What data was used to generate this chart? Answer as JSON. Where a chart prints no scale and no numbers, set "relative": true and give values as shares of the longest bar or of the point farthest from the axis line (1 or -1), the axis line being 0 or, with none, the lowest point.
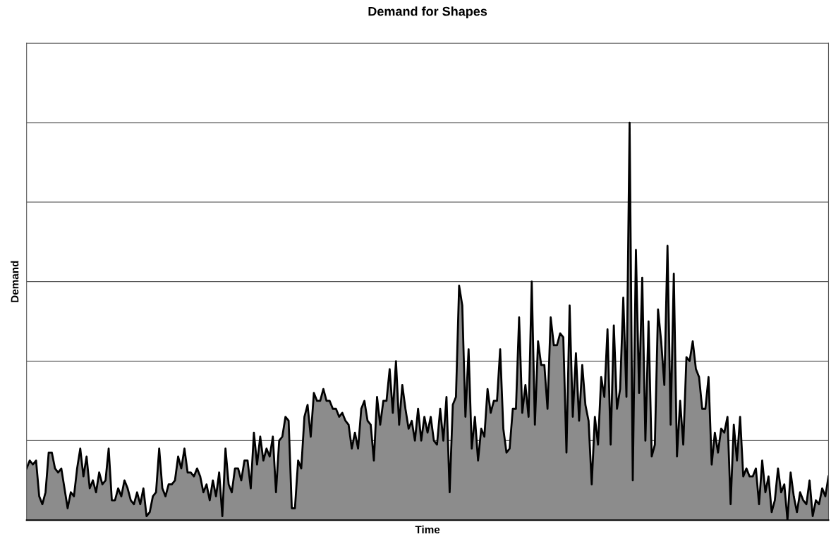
{
  "chart_data": {
    "type": "area",
    "title": "Demand for Shapes",
    "xlabel": "Time",
    "ylabel": "Demand",
    "relative": true,
    "grid": "y",
    "categories": [
      null,
      null,
      null,
      null,
      null,
      null,
      null,
      null,
      null,
      null,
      null,
      null,
      null,
      null,
      null,
      null,
      null,
      null,
      null,
      null,
      null,
      null,
      null,
      null,
      null,
      null,
      null,
      null,
      null,
      null,
      null,
      null,
      null,
      null,
      null,
      null,
      null,
      null,
      null,
      null,
      null,
      null,
      null,
      null,
      null,
      null,
      null,
      null,
      null,
      null,
      null,
      null,
      null,
      null,
      null,
      null,
      null,
      null,
      null,
      null,
      null,
      null,
      null,
      null,
      null,
      null,
      null,
      null,
      null,
      null,
      null,
      null,
      null,
      null,
      null,
      null,
      null,
      null,
      null,
      null,
      null,
      null,
      null,
      null,
      null,
      null,
      null,
      null,
      null,
      null,
      null,
      null,
      null,
      null,
      null,
      null,
      null,
      null,
      null,
      null,
      null,
      null,
      null,
      null,
      null,
      null,
      null,
      null,
      null,
      null,
      null,
      null,
      null,
      null,
      null,
      null,
      null,
      null,
      null,
      null,
      null,
      null,
      null,
      null,
      null,
      null,
      null,
      null,
      null,
      null,
      null,
      null,
      null,
      null,
      null,
      null,
      null,
      null,
      null,
      null,
      null,
      null,
      null,
      null,
      null,
      null,
      null,
      null,
      null,
      null,
      null,
      null,
      null,
      null,
      null,
      null,
      null,
      null,
      null,
      null,
      null,
      null,
      null,
      null,
      null,
      null,
      null,
      null,
      null,
      null,
      null,
      null,
      null,
      null,
      null,
      null,
      null,
      null,
      null,
      null,
      null,
      null,
      null,
      null,
      null,
      null,
      null,
      null,
      null,
      null,
      null,
      null,
      null,
      null,
      null,
      null,
      null,
      null,
      null,
      null,
      null,
      null,
      null,
      null,
      null,
      null,
      null,
      null,
      null,
      null,
      null,
      null,
      null,
      null,
      null,
      null,
      null,
      null,
      null,
      null,
      null,
      null,
      null,
      null,
      null,
      null,
      null,
      null,
      null,
      null,
      null,
      null,
      null,
      null,
      null,
      null,
      null,
      null,
      null,
      null,
      null,
      null,
      null,
      null,
      null,
      null,
      null,
      null,
      null,
      null,
      null,
      null,
      null,
      null,
      null
    ],
    "series": [
      {
        "color": "#8c8c8c",
        "values": [
          0.13,
          0.15,
          0.14,
          0.15,
          0.06,
          0.04,
          0.07,
          0.17,
          0.17,
          0.13,
          0.12,
          0.13,
          0.08,
          0.03,
          0.07,
          0.06,
          0.13,
          0.18,
          0.11,
          0.16,
          0.08,
          0.1,
          0.07,
          0.12,
          0.09,
          0.1,
          0.18,
          0.05,
          0.05,
          0.08,
          0.06,
          0.1,
          0.08,
          0.05,
          0.04,
          0.07,
          0.04,
          0.08,
          0.01,
          0.02,
          0.06,
          0.07,
          0.18,
          0.08,
          0.06,
          0.09,
          0.09,
          0.1,
          0.16,
          0.13,
          0.18,
          0.12,
          0.12,
          0.11,
          0.13,
          0.11,
          0.07,
          0.09,
          0.05,
          0.1,
          0.06,
          0.12,
          0.01,
          0.18,
          0.09,
          0.07,
          0.13,
          0.13,
          0.1,
          0.15,
          0.15,
          0.08,
          0.22,
          0.14,
          0.21,
          0.15,
          0.18,
          0.16,
          0.21,
          0.07,
          0.2,
          0.21,
          0.26,
          0.25,
          0.03,
          0.03,
          0.15,
          0.13,
          0.26,
          0.29,
          0.21,
          0.32,
          0.3,
          0.3,
          0.33,
          0.3,
          0.3,
          0.28,
          0.28,
          0.26,
          0.27,
          0.25,
          0.24,
          0.18,
          0.22,
          0.18,
          0.28,
          0.3,
          0.25,
          0.24,
          0.15,
          0.31,
          0.24,
          0.3,
          0.3,
          0.38,
          0.27,
          0.4,
          0.24,
          0.34,
          0.28,
          0.23,
          0.25,
          0.2,
          0.28,
          0.2,
          0.26,
          0.22,
          0.26,
          0.2,
          0.19,
          0.28,
          0.2,
          0.31,
          0.07,
          0.29,
          0.31,
          0.59,
          0.54,
          0.26,
          0.43,
          0.18,
          0.26,
          0.15,
          0.23,
          0.21,
          0.33,
          0.27,
          0.3,
          0.3,
          0.43,
          0.23,
          0.17,
          0.18,
          0.28,
          0.28,
          0.51,
          0.27,
          0.34,
          0.26,
          0.6,
          0.24,
          0.45,
          0.39,
          0.39,
          0.28,
          0.51,
          0.44,
          0.44,
          0.47,
          0.46,
          0.17,
          0.54,
          0.26,
          0.42,
          0.25,
          0.39,
          0.29,
          0.25,
          0.09,
          0.26,
          0.19,
          0.36,
          0.31,
          0.48,
          0.19,
          0.49,
          0.28,
          0.33,
          0.56,
          0.31,
          1,
          0.1,
          0.68,
          0.32,
          0.61,
          0.2,
          0.5,
          0.16,
          0.19,
          0.53,
          0.45,
          0.34,
          0.69,
          0.24,
          0.62,
          0.16,
          0.3,
          0.19,
          0.41,
          0.4,
          0.45,
          0.38,
          0.36,
          0.28,
          0.28,
          0.36,
          0.14,
          0.22,
          0.17,
          0.23,
          0.22,
          0.26,
          0.04,
          0.24,
          0.15,
          0.26,
          0.11,
          0.13,
          0.11,
          0.11,
          0.13,
          0.04,
          0.15,
          0.07,
          0.11,
          0.02,
          0.05,
          0.13,
          0.07,
          0.09,
          0,
          0.12,
          0.06,
          0.02,
          0.07,
          0.05,
          0.04,
          0.1,
          0.01,
          0.05,
          0.04,
          0.08,
          0.06,
          0.11
        ]
      }
    ]
  }
}
